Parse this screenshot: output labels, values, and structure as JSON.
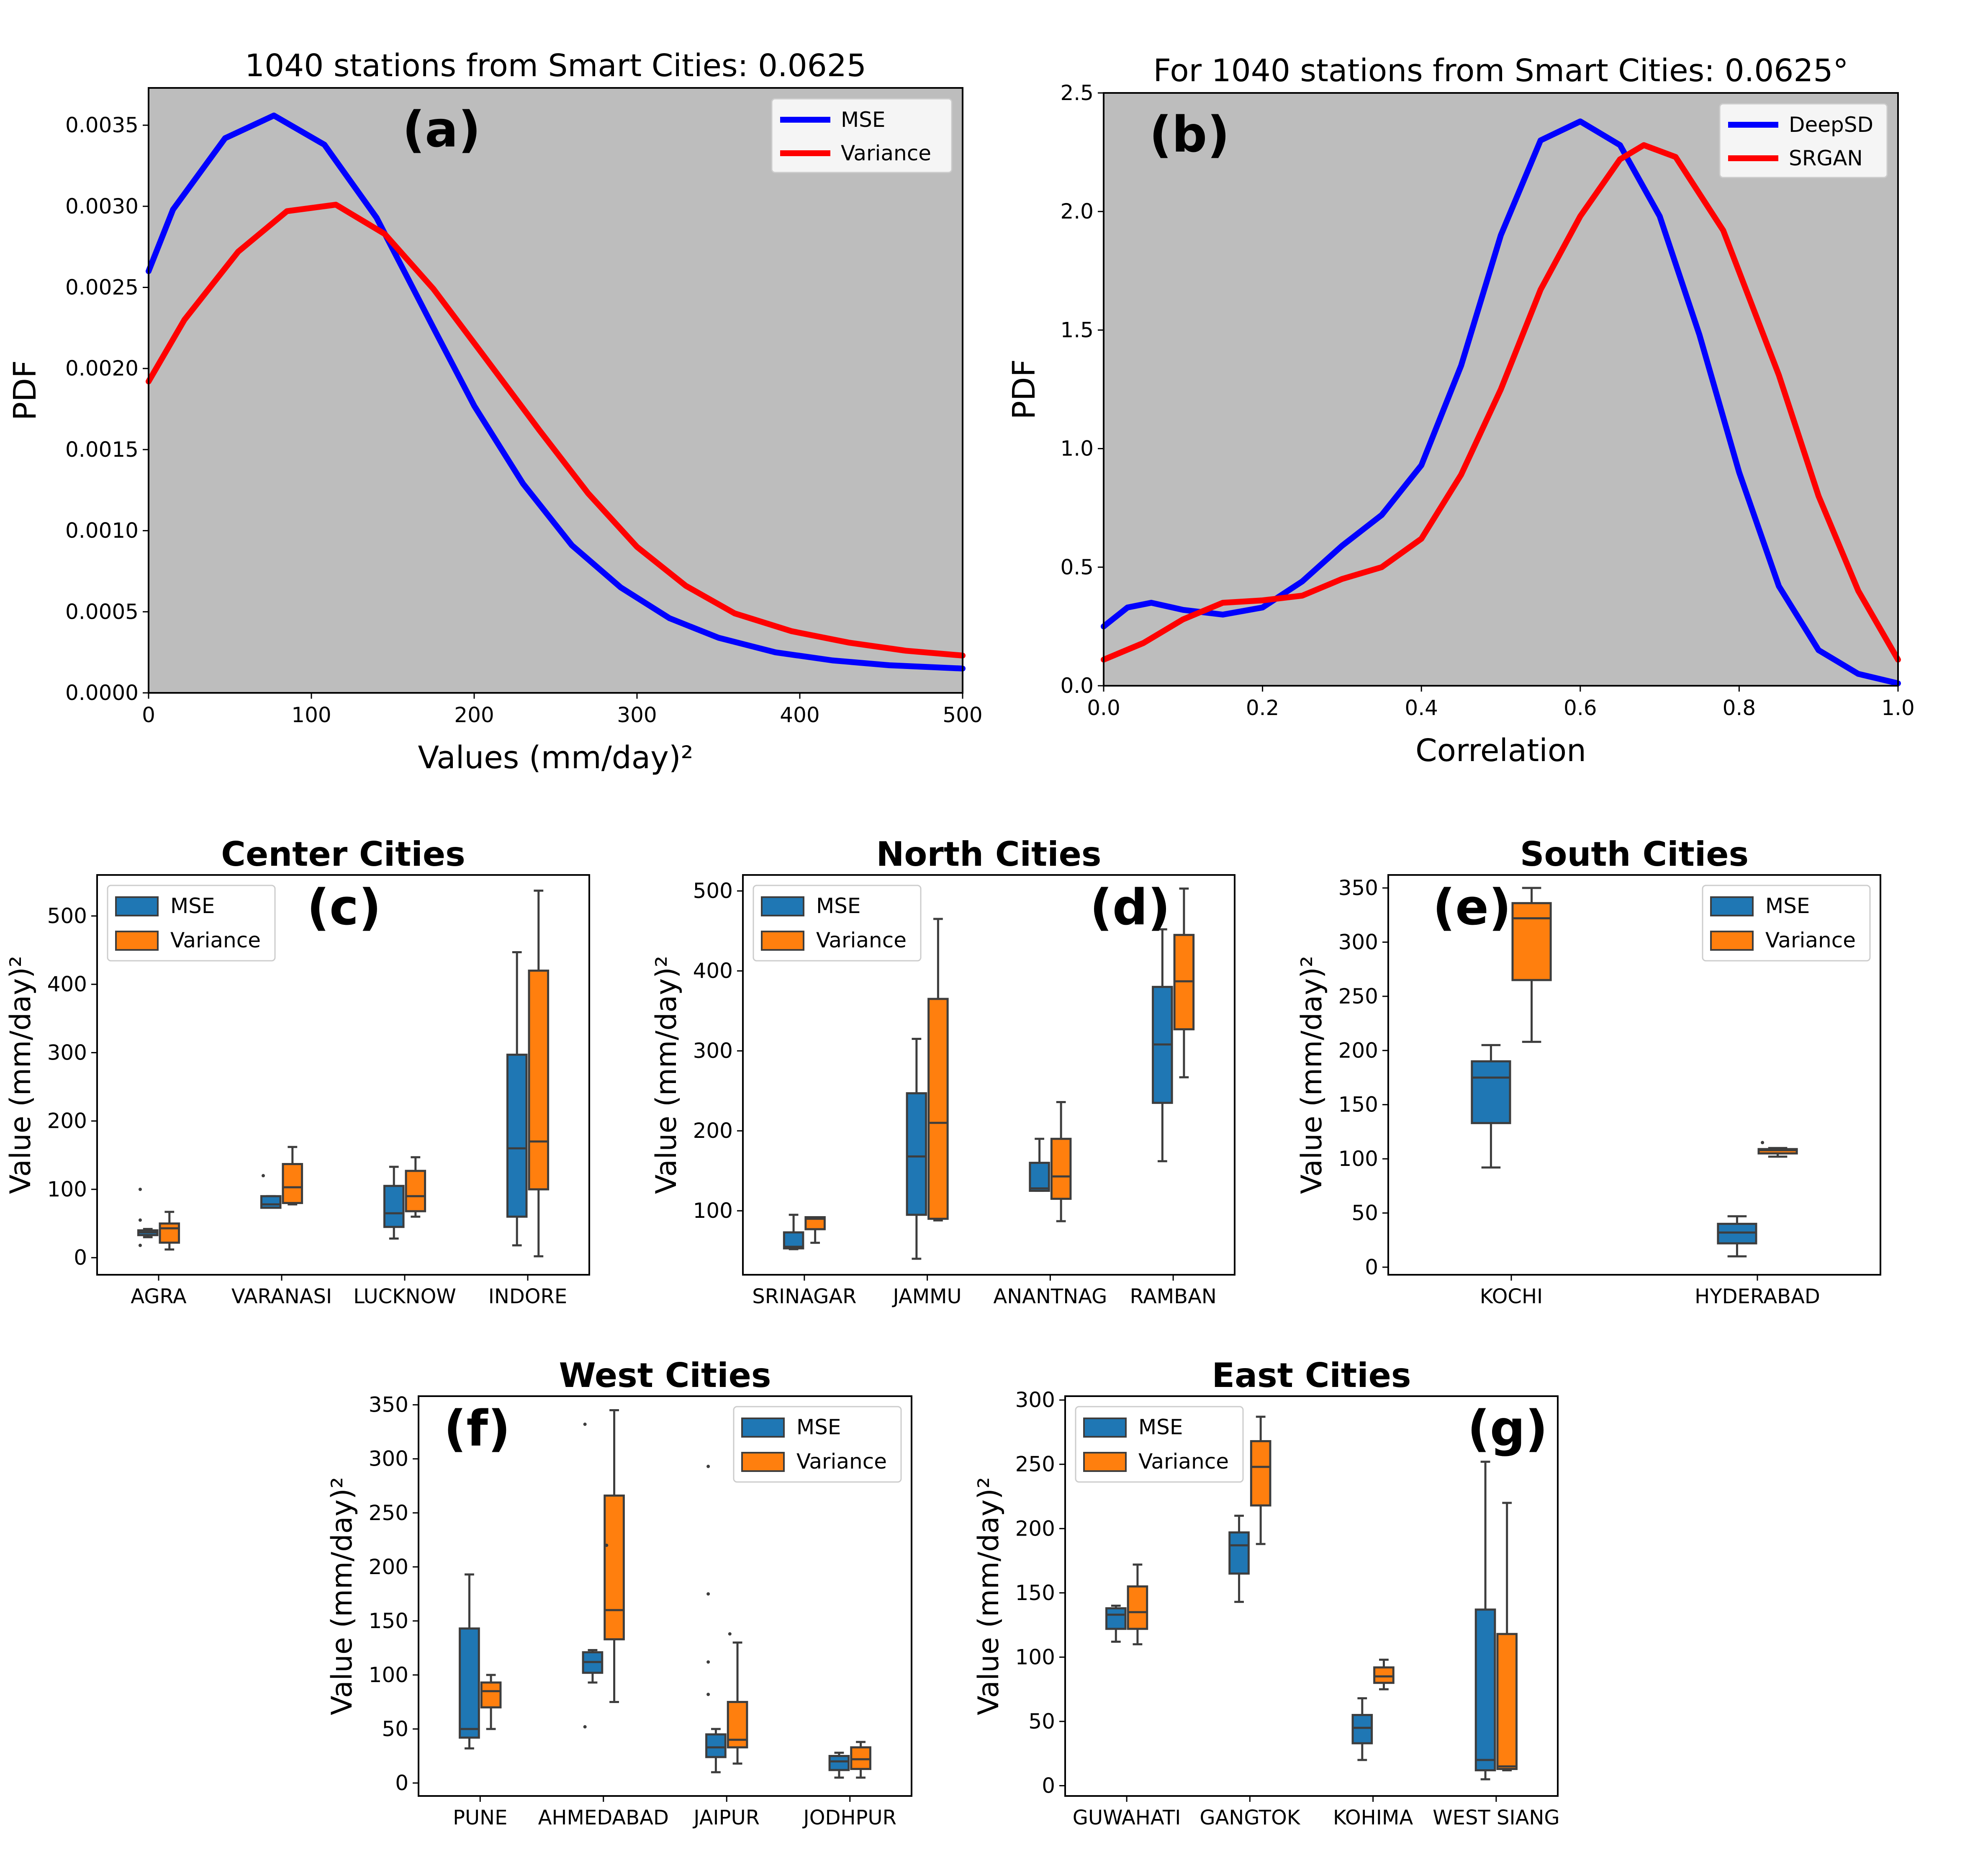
{
  "colors": {
    "mse": "#1f77b4",
    "variance": "#ff7f0e",
    "pdf_mse": "#0000ff",
    "pdf_variance": "#ff0000",
    "panel_bg": "#bdbdbd"
  },
  "chart_data": [
    {
      "type": "line",
      "id": "a",
      "panel_label": "(a)",
      "title": "1040 stations from Smart Cities: 0.0625",
      "xlabel": "Values (mm/day)²",
      "ylabel": "PDF",
      "xlim": [
        0,
        500
      ],
      "ylim": [
        0,
        0.00373
      ],
      "xticks": [
        0,
        100,
        200,
        300,
        400,
        500
      ],
      "xtick_labels": [
        "0",
        "100",
        "200",
        "300",
        "400",
        "500"
      ],
      "yticks": [
        0,
        0.0005,
        0.001,
        0.0015,
        0.002,
        0.0025,
        0.003,
        0.0035
      ],
      "ytick_labels": [
        "0.0000",
        "0.0005",
        "0.0010",
        "0.0015",
        "0.0020",
        "0.0025",
        "0.0030",
        "0.0035"
      ],
      "legend": "top-right",
      "series": [
        {
          "name": "MSE",
          "color": "#0000ff",
          "x": [
            0,
            15,
            47,
            77,
            108,
            140,
            175,
            200,
            230,
            260,
            290,
            320,
            350,
            385,
            420,
            455,
            500
          ],
          "y": [
            0.0026,
            0.00298,
            0.00342,
            0.00356,
            0.00338,
            0.00293,
            0.00225,
            0.00177,
            0.00129,
            0.00091,
            0.00065,
            0.00046,
            0.00034,
            0.00025,
            0.0002,
            0.00017,
            0.00015
          ]
        },
        {
          "name": "Variance",
          "color": "#ff0000",
          "x": [
            0,
            22,
            55,
            85,
            115,
            145,
            175,
            205,
            240,
            270,
            300,
            330,
            360,
            395,
            430,
            465,
            500
          ],
          "y": [
            0.00192,
            0.0023,
            0.00272,
            0.00297,
            0.00301,
            0.00283,
            0.00249,
            0.00209,
            0.00162,
            0.00123,
            0.0009,
            0.00066,
            0.00049,
            0.00038,
            0.00031,
            0.00026,
            0.00023
          ]
        }
      ]
    },
    {
      "type": "line",
      "id": "b",
      "panel_label": "(b)",
      "title": "For 1040 stations from Smart Cities: 0.0625°",
      "xlabel": "Correlation",
      "ylabel": "PDF",
      "xlim": [
        0,
        1
      ],
      "ylim": [
        0,
        2.5
      ],
      "xticks": [
        0,
        0.2,
        0.4,
        0.6,
        0.8,
        1.0
      ],
      "xtick_labels": [
        "0.0",
        "0.2",
        "0.4",
        "0.6",
        "0.8",
        "1.0"
      ],
      "yticks": [
        0,
        0.5,
        1.0,
        1.5,
        2.0,
        2.5
      ],
      "ytick_labels": [
        "0.0",
        "0.5",
        "1.0",
        "1.5",
        "2.0",
        "2.5"
      ],
      "legend": "top-right",
      "series": [
        {
          "name": "DeepSD",
          "color": "#0000ff",
          "x": [
            0,
            0.03,
            0.06,
            0.1,
            0.15,
            0.2,
            0.25,
            0.3,
            0.35,
            0.4,
            0.45,
            0.5,
            0.55,
            0.6,
            0.65,
            0.7,
            0.75,
            0.8,
            0.85,
            0.9,
            0.95,
            1.0
          ],
          "y": [
            0.25,
            0.33,
            0.35,
            0.32,
            0.3,
            0.33,
            0.44,
            0.59,
            0.72,
            0.93,
            1.35,
            1.9,
            2.3,
            2.38,
            2.28,
            1.98,
            1.48,
            0.9,
            0.42,
            0.15,
            0.05,
            0.01
          ]
        },
        {
          "name": "SRGAN",
          "color": "#ff0000",
          "x": [
            0,
            0.05,
            0.1,
            0.15,
            0.2,
            0.25,
            0.3,
            0.35,
            0.4,
            0.45,
            0.5,
            0.55,
            0.6,
            0.65,
            0.68,
            0.72,
            0.78,
            0.85,
            0.9,
            0.95,
            1.0
          ],
          "y": [
            0.11,
            0.18,
            0.28,
            0.35,
            0.36,
            0.38,
            0.45,
            0.5,
            0.62,
            0.89,
            1.25,
            1.67,
            1.98,
            2.22,
            2.28,
            2.23,
            1.92,
            1.31,
            0.8,
            0.4,
            0.11
          ]
        }
      ]
    },
    {
      "type": "box",
      "id": "c",
      "panel_label": "(c)",
      "title": "Center Cities",
      "ylabel": "Value (mm/day)²",
      "ylim": [
        -25,
        560
      ],
      "yticks": [
        0,
        100,
        200,
        300,
        400,
        500
      ],
      "legend": "top-left",
      "categories": [
        "AGRA",
        "VARANASI",
        "LUCKNOW",
        "INDORE"
      ],
      "series": [
        {
          "name": "MSE",
          "boxes": [
            {
              "whislo": 30,
              "q1": 33,
              "med": 37,
              "q3": 40,
              "whishi": 42,
              "fliers": [
                18,
                55,
                100
              ]
            },
            {
              "whislo": 73,
              "q1": 73,
              "med": 78,
              "q3": 90,
              "whishi": 90,
              "fliers": [
                120
              ]
            },
            {
              "whislo": 28,
              "q1": 45,
              "med": 65,
              "q3": 105,
              "whishi": 133,
              "fliers": []
            },
            {
              "whislo": 18,
              "q1": 60,
              "med": 160,
              "q3": 297,
              "whishi": 447,
              "fliers": []
            }
          ]
        },
        {
          "name": "Variance",
          "boxes": [
            {
              "whislo": 12,
              "q1": 22,
              "med": 43,
              "q3": 50,
              "whishi": 67,
              "fliers": []
            },
            {
              "whislo": 78,
              "q1": 80,
              "med": 103,
              "q3": 137,
              "whishi": 162,
              "fliers": []
            },
            {
              "whislo": 60,
              "q1": 68,
              "med": 90,
              "q3": 127,
              "whishi": 147,
              "fliers": []
            },
            {
              "whislo": 2,
              "q1": 100,
              "med": 170,
              "q3": 420,
              "whishi": 537,
              "fliers": []
            }
          ]
        }
      ]
    },
    {
      "type": "box",
      "id": "d",
      "panel_label": "(d)",
      "title": "North Cities",
      "ylabel": "Value (mm/day)²",
      "ylim": [
        20,
        520
      ],
      "yticks": [
        100,
        200,
        300,
        400,
        500
      ],
      "legend": "top-left",
      "categories": [
        "SRINAGAR",
        "JAMMU",
        "ANANTNAG",
        "RAMBAN"
      ],
      "series": [
        {
          "name": "MSE",
          "boxes": [
            {
              "whislo": 52,
              "q1": 53,
              "med": 55,
              "q3": 73,
              "whishi": 95,
              "fliers": []
            },
            {
              "whislo": 40,
              "q1": 95,
              "med": 168,
              "q3": 247,
              "whishi": 315,
              "fliers": []
            },
            {
              "whislo": 125,
              "q1": 125,
              "med": 128,
              "q3": 160,
              "whishi": 190,
              "fliers": []
            },
            {
              "whislo": 162,
              "q1": 235,
              "med": 308,
              "q3": 380,
              "whishi": 452,
              "fliers": []
            }
          ]
        },
        {
          "name": "Variance",
          "boxes": [
            {
              "whislo": 60,
              "q1": 77,
              "med": 90,
              "q3": 92,
              "whishi": 92,
              "fliers": []
            },
            {
              "whislo": 88,
              "q1": 90,
              "med": 210,
              "q3": 365,
              "whishi": 465,
              "fliers": []
            },
            {
              "whislo": 87,
              "q1": 115,
              "med": 143,
              "q3": 190,
              "whishi": 236,
              "fliers": []
            },
            {
              "whislo": 267,
              "q1": 327,
              "med": 387,
              "q3": 445,
              "whishi": 503,
              "fliers": []
            }
          ]
        }
      ]
    },
    {
      "type": "box",
      "id": "e",
      "panel_label": "(e)",
      "title": "South Cities",
      "ylabel": "Value (mm/day)²",
      "ylim": [
        -7,
        362
      ],
      "yticks": [
        0,
        50,
        100,
        150,
        200,
        250,
        300,
        350
      ],
      "legend": "top-right",
      "categories": [
        "KOCHI",
        "HYDERABAD"
      ],
      "series": [
        {
          "name": "MSE",
          "boxes": [
            {
              "whislo": 92,
              "q1": 133,
              "med": 175,
              "q3": 190,
              "whishi": 205,
              "fliers": []
            },
            {
              "whislo": 10,
              "q1": 22,
              "med": 32,
              "q3": 40,
              "whishi": 47,
              "fliers": []
            }
          ]
        },
        {
          "name": "Variance",
          "boxes": [
            {
              "whislo": 208,
              "q1": 265,
              "med": 322,
              "q3": 336,
              "whishi": 350,
              "fliers": []
            },
            {
              "whislo": 102,
              "q1": 105,
              "med": 108,
              "q3": 109,
              "whishi": 110,
              "fliers": [
                115
              ]
            }
          ]
        }
      ]
    },
    {
      "type": "box",
      "id": "f",
      "panel_label": "(f)",
      "title": "West Cities",
      "ylabel": "Value (mm/day)²",
      "ylim": [
        -12,
        358
      ],
      "yticks": [
        0,
        50,
        100,
        150,
        200,
        250,
        300,
        350
      ],
      "legend": "top-right",
      "categories": [
        "PUNE",
        "AHMEDABAD",
        "JAIPUR",
        "JODHPUR"
      ],
      "series": [
        {
          "name": "MSE",
          "boxes": [
            {
              "whislo": 32,
              "q1": 42,
              "med": 50,
              "q3": 143,
              "whishi": 193,
              "fliers": []
            },
            {
              "whislo": 93,
              "q1": 102,
              "med": 112,
              "q3": 121,
              "whishi": 123,
              "fliers": [
                52,
                332
              ]
            },
            {
              "whislo": 10,
              "q1": 24,
              "med": 33,
              "q3": 45,
              "whishi": 50,
              "fliers": [
                82,
                112,
                175,
                293
              ]
            },
            {
              "whislo": 5,
              "q1": 12,
              "med": 20,
              "q3": 25,
              "whishi": 28,
              "fliers": []
            }
          ]
        },
        {
          "name": "Variance",
          "boxes": [
            {
              "whislo": 50,
              "q1": 70,
              "med": 85,
              "q3": 93,
              "whishi": 100,
              "fliers": []
            },
            {
              "whislo": 75,
              "q1": 133,
              "med": 160,
              "q3": 266,
              "whishi": 345,
              "fliers": [
                220
              ]
            },
            {
              "whislo": 18,
              "q1": 33,
              "med": 40,
              "q3": 75,
              "whishi": 130,
              "fliers": [
                138
              ]
            },
            {
              "whislo": 5,
              "q1": 13,
              "med": 22,
              "q3": 33,
              "whishi": 38,
              "fliers": []
            }
          ]
        }
      ]
    },
    {
      "type": "box",
      "id": "g",
      "panel_label": "(g)",
      "title": "East Cities",
      "ylabel": "Value (mm/day)²",
      "ylim": [
        -8,
        303
      ],
      "yticks": [
        0,
        50,
        100,
        150,
        200,
        250,
        300
      ],
      "legend": "top-left",
      "categories": [
        "GUWAHATI",
        "GANGTOK",
        "KOHIMA",
        "WEST SIANG"
      ],
      "series": [
        {
          "name": "MSE",
          "boxes": [
            {
              "whislo": 112,
              "q1": 122,
              "med": 133,
              "q3": 138,
              "whishi": 140,
              "fliers": []
            },
            {
              "whislo": 143,
              "q1": 165,
              "med": 187,
              "q3": 197,
              "whishi": 210,
              "fliers": []
            },
            {
              "whislo": 20,
              "q1": 33,
              "med": 45,
              "q3": 55,
              "whishi": 68,
              "fliers": []
            },
            {
              "whislo": 5,
              "q1": 12,
              "med": 20,
              "q3": 137,
              "whishi": 252,
              "fliers": []
            }
          ]
        },
        {
          "name": "Variance",
          "boxes": [
            {
              "whislo": 110,
              "q1": 122,
              "med": 135,
              "q3": 155,
              "whishi": 172,
              "fliers": []
            },
            {
              "whislo": 188,
              "q1": 218,
              "med": 248,
              "q3": 268,
              "whishi": 287,
              "fliers": []
            },
            {
              "whislo": 75,
              "q1": 80,
              "med": 85,
              "q3": 92,
              "whishi": 98,
              "fliers": []
            },
            {
              "whislo": 12,
              "q1": 13,
              "med": 15,
              "q3": 118,
              "whishi": 220,
              "fliers": []
            }
          ]
        }
      ]
    }
  ]
}
